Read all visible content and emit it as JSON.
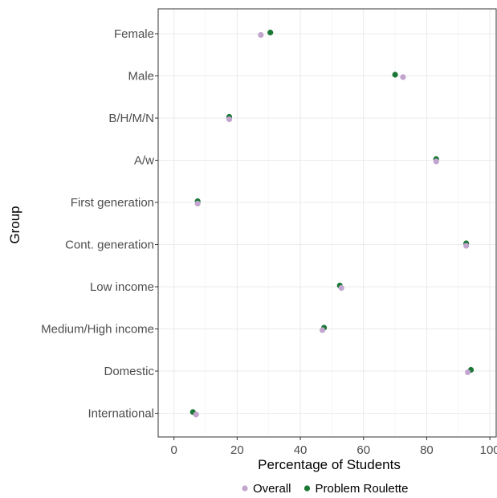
{
  "chart_data": {
    "type": "scatter",
    "xlabel": "Percentage of Students",
    "ylabel": "Group",
    "xlim": [
      -5,
      102
    ],
    "x_ticks": [
      0,
      20,
      40,
      60,
      80,
      100
    ],
    "categories": [
      "Female",
      "Male",
      "B/H/M/N",
      "A/w",
      "First generation",
      "Cont. generation",
      "Low income",
      "Medium/High income",
      "Domestic",
      "International"
    ],
    "series": [
      {
        "name": "Problem Roulette",
        "color": "#1b7837",
        "values": [
          30.5,
          70.0,
          17.5,
          83.0,
          7.5,
          92.5,
          52.5,
          47.5,
          94.0,
          6.0
        ]
      },
      {
        "name": "Overall",
        "color": "#c2a5cf",
        "values": [
          27.5,
          72.5,
          17.5,
          83.0,
          7.5,
          92.5,
          53.0,
          47.0,
          93.0,
          7.0
        ]
      }
    ],
    "legend_order": [
      "Overall",
      "Problem Roulette"
    ],
    "legend_position": "bottom",
    "grid": true
  }
}
